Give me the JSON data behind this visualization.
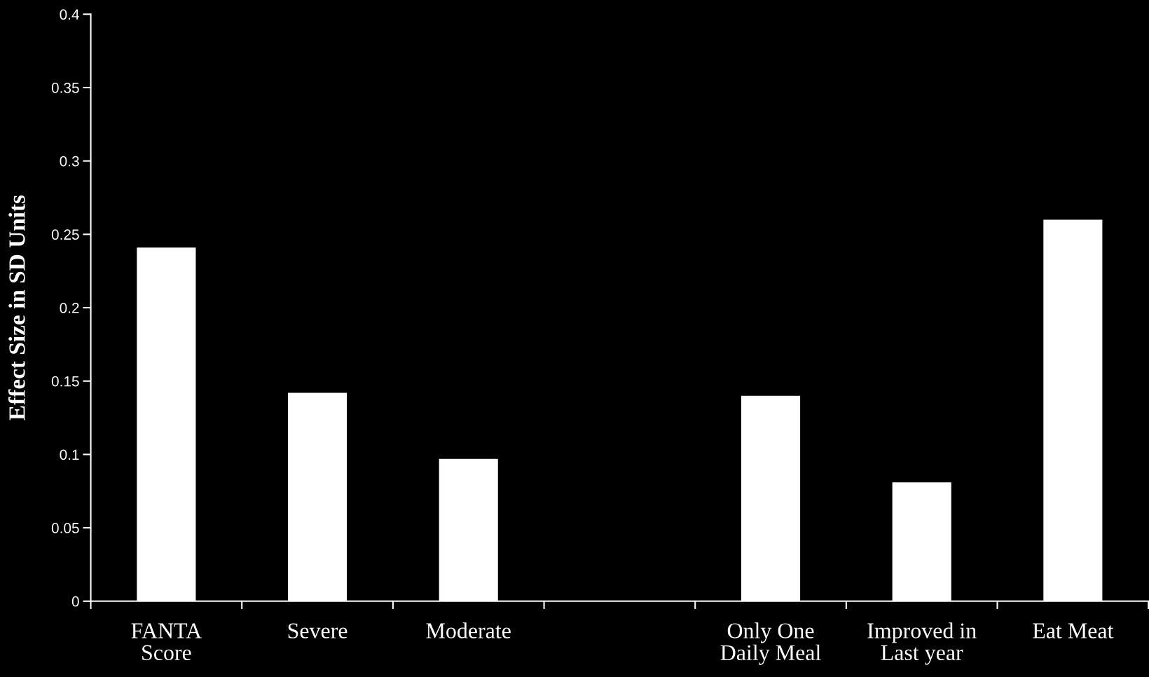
{
  "chart_data": {
    "type": "bar",
    "ylabel": "Effect Size in SD Units",
    "categories": [
      "FANTA\nScore",
      "Severe",
      "Moderate",
      null,
      "Only One\nDaily Meal",
      "Improved in\nLast year",
      "Eat Meat"
    ],
    "values": [
      0.241,
      0.142,
      0.097,
      null,
      0.14,
      0.081,
      0.26
    ],
    "color": "#ffffff",
    "ylim": [
      0,
      0.4
    ],
    "yticks": [
      {
        "value": 0,
        "label": "0"
      },
      0.05,
      0.1,
      0.15,
      0.2,
      0.25,
      0.3,
      0.35,
      0.4
    ],
    "grid": false
  }
}
